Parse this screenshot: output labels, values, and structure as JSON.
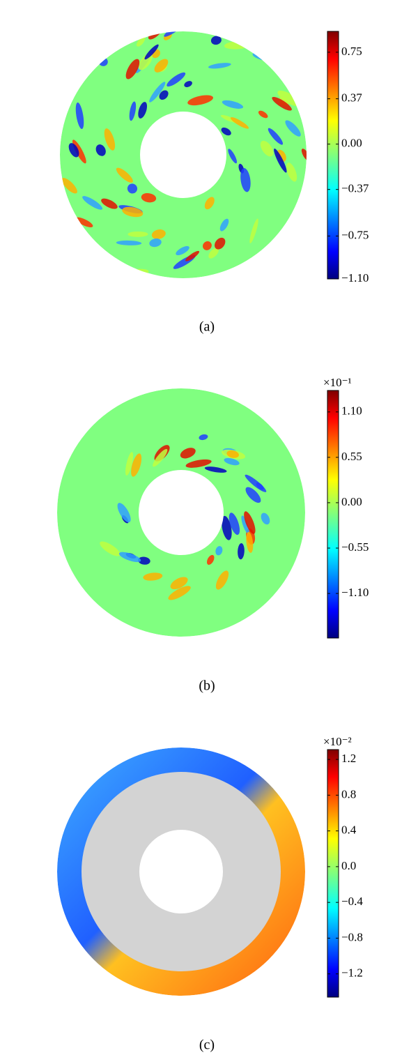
{
  "panels": [
    {
      "label": "(a)",
      "colorbar": {
        "range": [
          -1.1,
          0.92
        ],
        "ticks": [
          {
            "value": 0.75,
            "label": "0.75"
          },
          {
            "value": 0.37,
            "label": "0.37"
          },
          {
            "value": 0,
            "label": "0.00"
          },
          {
            "value": -0.37,
            "label": "−0.37"
          },
          {
            "value": -0.75,
            "label": "−0.75"
          },
          {
            "value": -1.1,
            "label": "−1.10"
          }
        ]
      }
    },
    {
      "label": "(b)",
      "colorbar": {
        "multiplier": "×10⁻¹",
        "range": [
          -1.64,
          1.36
        ],
        "ticks": [
          {
            "value": 1.1,
            "label": "1.10"
          },
          {
            "value": 0.55,
            "label": "0.55"
          },
          {
            "value": 0,
            "label": "0.00"
          },
          {
            "value": -0.55,
            "label": "−0.55"
          },
          {
            "value": -1.1,
            "label": "−1.10"
          }
        ]
      }
    },
    {
      "label": "(c)",
      "colorbar": {
        "multiplier": "×10⁻²",
        "range": [
          -1.46,
          1.31
        ],
        "ticks": [
          {
            "value": 1.2,
            "label": "1.2"
          },
          {
            "value": 0.8,
            "label": "0.8"
          },
          {
            "value": 0.4,
            "label": "0.4"
          },
          {
            "value": 0,
            "label": "0.0"
          },
          {
            "value": -0.4,
            "label": "−0.4"
          },
          {
            "value": -0.8,
            "label": "−0.8"
          },
          {
            "value": -1.2,
            "label": "−1.2"
          }
        ]
      }
    }
  ]
}
